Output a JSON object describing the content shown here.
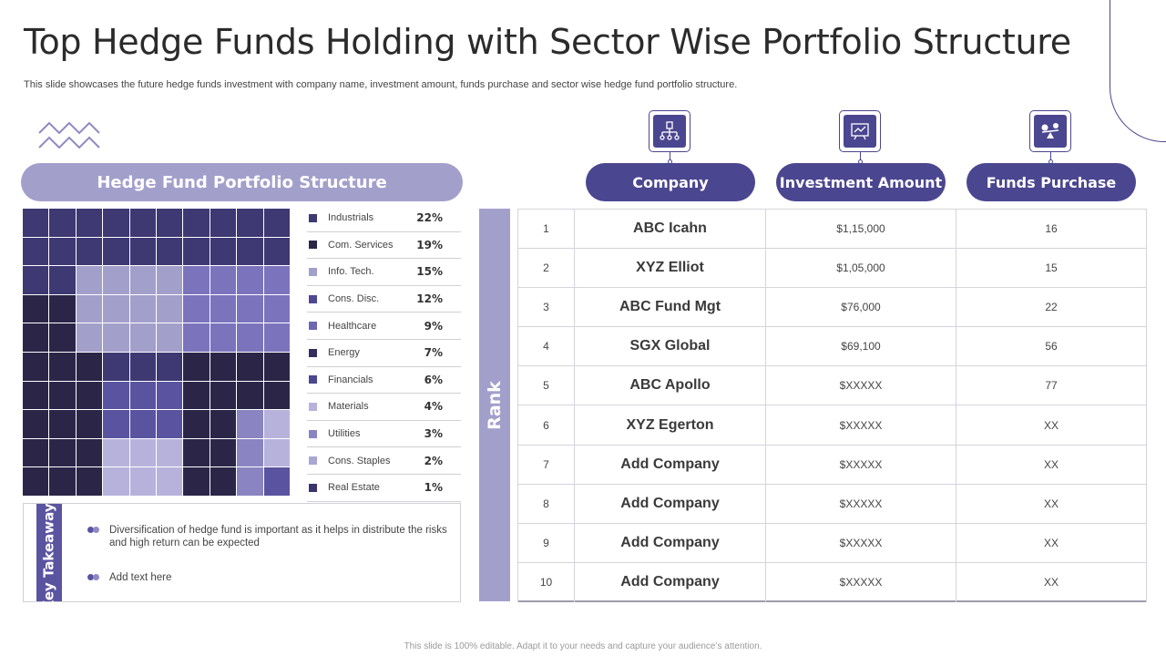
{
  "slide": {
    "title": "Top Hedge Funds Holding with Sector Wise Portfolio Structure",
    "subtitle": "This slide showcases the future hedge funds investment with company name, investment amount, funds purchase and sector wise hedge fund portfolio structure.",
    "footer": "This slide is 100% editable. Adapt it to your needs and capture your audience’s attention."
  },
  "colors": {
    "dark": "#2b2648",
    "deep_purple": "#3e3873",
    "mid_purple": "#5a54a0",
    "purple": "#7b74bd",
    "lavender": "#a39fcb",
    "light_lavender": "#b7b2dc"
  },
  "portfolio": {
    "header": "Hedge Fund Portfolio Structure",
    "sectors": [
      {
        "label": "Industrials",
        "value": "22%",
        "color": "#3e3873"
      },
      {
        "label": "Com. Services",
        "value": "19%",
        "color": "#2b2648"
      },
      {
        "label": "Info. Tech.",
        "value": "15%",
        "color": "#a39fcb"
      },
      {
        "label": "Cons. Disc.",
        "value": "12%",
        "color": "#4d4794"
      },
      {
        "label": "Healthcare",
        "value": "9%",
        "color": "#6d66b2"
      },
      {
        "label": "Energy",
        "value": "7%",
        "color": "#332d5e"
      },
      {
        "label": "Financials",
        "value": "6%",
        "color": "#4b4690"
      },
      {
        "label": "Materials",
        "value": "4%",
        "color": "#b7b2dc"
      },
      {
        "label": "Utilities",
        "value": "3%",
        "color": "#8a84c2"
      },
      {
        "label": "Cons. Staples",
        "value": "2%",
        "color": "#aaa5d3"
      },
      {
        "label": "Real Estate",
        "value": "1%",
        "color": "#3a3470"
      }
    ]
  },
  "takeaways": {
    "label": "Key Takeaways",
    "items": [
      "Diversification of hedge fund is important as it helps in distribute the risks and high return can be expected",
      "Add text here"
    ]
  },
  "ranking": {
    "rank_label": "Rank",
    "columns": [
      {
        "label": "Company",
        "icon": "org-chart-icon"
      },
      {
        "label": "Investment Amount",
        "icon": "presentation-board-icon"
      },
      {
        "label": "Funds Purchase",
        "icon": "money-balance-icon"
      }
    ],
    "rows": [
      {
        "rank": "1",
        "company": "ABC Icahn",
        "amount": "$1,15,000",
        "funds": "16"
      },
      {
        "rank": "2",
        "company": "XYZ Elliot",
        "amount": "$1,05,000",
        "funds": "15"
      },
      {
        "rank": "3",
        "company": "ABC Fund Mgt",
        "amount": "$76,000",
        "funds": "22"
      },
      {
        "rank": "4",
        "company": "SGX Global",
        "amount": "$69,100",
        "funds": "56"
      },
      {
        "rank": "5",
        "company": "ABC Apollo",
        "amount": "$XXXXX",
        "funds": "77"
      },
      {
        "rank": "6",
        "company": "XYZ Egerton",
        "amount": "$XXXXX",
        "funds": "XX"
      },
      {
        "rank": "7",
        "company": "Add Company",
        "amount": "$XXXXX",
        "funds": "XX"
      },
      {
        "rank": "8",
        "company": "Add Company",
        "amount": "$XXXXX",
        "funds": "XX"
      },
      {
        "rank": "9",
        "company": "Add Company",
        "amount": "$XXXXX",
        "funds": "XX"
      },
      {
        "rank": "10",
        "company": "Add Company",
        "amount": "$XXXXX",
        "funds": "XX"
      }
    ]
  }
}
